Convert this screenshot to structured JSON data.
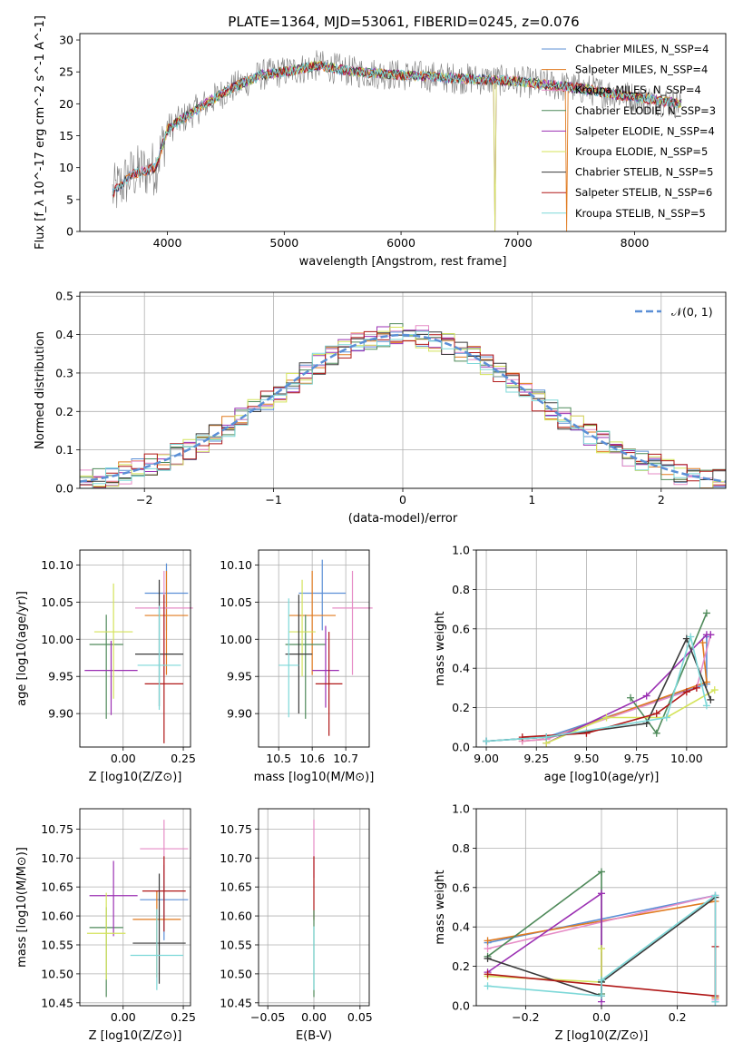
{
  "title": "PLATE=1364, MJD=53061, FIBERID=0245, z=0.076",
  "colors": {
    "chabrier_miles": "#5b8fd6",
    "salpeter_miles": "#e07a1f",
    "kroupa_miles": "#e68bc6",
    "chabrier_elodie": "#4f8a5a",
    "salpeter_elodie": "#9b30b3",
    "kroupa_elodie": "#d4e35a",
    "chabrier_stelib": "#3a3a3a",
    "salpeter_stelib": "#b01818",
    "kroupa_stelib": "#7dd8d8",
    "normal_curve": "#5b8fd6"
  },
  "chart_data": [
    {
      "id": "spectrum",
      "type": "line",
      "title": "PLATE=1364, MJD=53061, FIBERID=0245, z=0.076",
      "xlabel": "wavelength [Angstrom, rest frame]",
      "ylabel": "Flux [f_λ 10^-17 erg cm^-2 s^-1 A^-1]",
      "xlim": [
        3250,
        8780
      ],
      "ylim": [
        0,
        31
      ],
      "xticks": [
        4000,
        5000,
        6000,
        7000,
        8000
      ],
      "yticks": [
        0,
        5,
        10,
        15,
        20,
        25,
        30
      ],
      "legend_position": "top-right",
      "legend": [
        "Chabrier MILES, N_SSP=4",
        "Salpeter MILES, N_SSP=4",
        "Kroupa MILES, N_SSP=4",
        "Chabrier ELODIE, N_SSP=3",
        "Salpeter ELODIE, N_SSP=4",
        "Kroupa ELODIE, N_SSP=5",
        "Chabrier STELIB, N_SSP=5",
        "Salpeter STELIB, N_SSP=6",
        "Kroupa STELIB, N_SSP=5"
      ],
      "continuum": {
        "x": [
          3530,
          3700,
          3900,
          4000,
          4200,
          4500,
          4800,
          5000,
          5300,
          5600,
          6000,
          6500,
          7000,
          7500,
          8000,
          8400
        ],
        "y": [
          6,
          9,
          10,
          16,
          18.5,
          22,
          24.5,
          25,
          26,
          25,
          24.5,
          24,
          23.5,
          22.5,
          21,
          20
        ]
      },
      "dropouts": [
        {
          "x": 6800,
          "to": 0
        },
        {
          "x": 7420,
          "to": 0
        }
      ]
    },
    {
      "id": "residuals",
      "type": "histogram",
      "xlabel": "(data-model)/error",
      "ylabel": "Normed distribution",
      "xlim": [
        -2.5,
        2.5
      ],
      "ylim": [
        0,
        0.51
      ],
      "xticks": [
        -2,
        -1,
        0,
        1,
        2
      ],
      "yticks": [
        0.0,
        0.1,
        0.2,
        0.3,
        0.4,
        0.5
      ],
      "grid": true,
      "legend_position": "top-right",
      "legend": [
        "𝒩(0, 1)"
      ],
      "bin_width": 0.1
    },
    {
      "id": "age_vs_Z",
      "type": "scatter",
      "xlabel": "Z [log10(Z/Z⊙)]",
      "ylabel": "age [log10(age/yr)]",
      "xlim": [
        -0.18,
        0.28
      ],
      "ylim": [
        9.855,
        10.12
      ],
      "xticks": [
        0.0,
        0.25
      ],
      "yticks": [
        9.9,
        9.95,
        10.0,
        10.05,
        10.1
      ],
      "grid": true,
      "points": [
        {
          "s": "chabrier_miles",
          "x": 0.18,
          "y": 10.062,
          "xe": 0.09,
          "yel": 0.05,
          "yeu": 0.04
        },
        {
          "s": "salpeter_miles",
          "x": 0.18,
          "y": 10.032,
          "xe": 0.09,
          "yel": 0.08,
          "yeu": 0.06
        },
        {
          "s": "kroupa_miles",
          "x": 0.17,
          "y": 10.042,
          "xe": 0.12,
          "yel": 0.09,
          "yeu": 0.05
        },
        {
          "s": "chabrier_elodie",
          "x": -0.07,
          "y": 9.993,
          "xe": 0.07,
          "yel": 0.1,
          "yeu": 0.04
        },
        {
          "s": "salpeter_elodie",
          "x": -0.05,
          "y": 9.958,
          "xe": 0.11,
          "yel": 0.06,
          "yeu": 0.04
        },
        {
          "s": "kroupa_elodie",
          "x": -0.04,
          "y": 10.01,
          "xe": 0.08,
          "yel": 0.09,
          "yeu": 0.065
        },
        {
          "s": "chabrier_stelib",
          "x": 0.15,
          "y": 9.98,
          "xe": 0.1,
          "yel": 0.07,
          "yeu": 0.1
        },
        {
          "s": "salpeter_stelib",
          "x": 0.17,
          "y": 9.94,
          "xe": 0.08,
          "yel": 0.08,
          "yeu": 0.12
        },
        {
          "s": "kroupa_stelib",
          "x": 0.15,
          "y": 9.965,
          "xe": 0.09,
          "yel": 0.06,
          "yeu": 0.08
        }
      ]
    },
    {
      "id": "age_vs_mass",
      "type": "scatter",
      "xlabel": "mass [log10(M/M⊙)]",
      "ylabel": "",
      "xlim": [
        10.44,
        10.77
      ],
      "ylim": [
        9.855,
        10.12
      ],
      "xticks": [
        10.5,
        10.6,
        10.7
      ],
      "yticks": [
        9.9,
        9.95,
        10.0,
        10.05,
        10.1
      ],
      "grid": true,
      "points": [
        {
          "s": "chabrier_miles",
          "x": 10.63,
          "y": 10.062,
          "xe": 0.07,
          "yel": 0.05,
          "yeu": 0.045
        },
        {
          "s": "salpeter_miles",
          "x": 10.6,
          "y": 10.032,
          "xe": 0.07,
          "yel": 0.08,
          "yeu": 0.06
        },
        {
          "s": "kroupa_miles",
          "x": 10.72,
          "y": 10.042,
          "xe": 0.06,
          "yel": 0.09,
          "yeu": 0.05
        },
        {
          "s": "chabrier_elodie",
          "x": 10.58,
          "y": 9.993,
          "xe": 0.06,
          "yel": 0.1,
          "yeu": 0.04
        },
        {
          "s": "salpeter_elodie",
          "x": 10.64,
          "y": 9.958,
          "xe": 0.04,
          "yel": 0.05,
          "yeu": 0.06
        },
        {
          "s": "kroupa_elodie",
          "x": 10.57,
          "y": 10.01,
          "xe": 0.04,
          "yel": 0.06,
          "yeu": 0.07
        },
        {
          "s": "chabrier_stelib",
          "x": 10.56,
          "y": 9.98,
          "xe": 0.04,
          "yel": 0.08,
          "yeu": 0.08
        },
        {
          "s": "salpeter_stelib",
          "x": 10.65,
          "y": 9.94,
          "xe": 0.04,
          "yel": 0.07,
          "yeu": 0.07
        },
        {
          "s": "kroupa_stelib",
          "x": 10.53,
          "y": 9.965,
          "xe": 0.03,
          "yel": 0.07,
          "yeu": 0.09
        }
      ]
    },
    {
      "id": "mass_weight_vs_age",
      "type": "line",
      "xlabel": "age [log10(age/yr)]",
      "ylabel": "mass weight",
      "xlim": [
        8.95,
        10.2
      ],
      "ylim": [
        0,
        1.0
      ],
      "xticks": [
        9.0,
        9.25,
        9.5,
        9.75,
        10.0
      ],
      "yticks": [
        0.0,
        0.2,
        0.4,
        0.6,
        0.8,
        1.0
      ],
      "grid": true,
      "series": [
        {
          "s": "chabrier_miles",
          "x": [
            9.0,
            9.3,
            10.1,
            10.1
          ],
          "y": [
            0.03,
            0.05,
            0.32,
            0.56
          ]
        },
        {
          "s": "salpeter_miles",
          "x": [
            9.18,
            9.3,
            10.1,
            10.08
          ],
          "y": [
            0.03,
            0.04,
            0.33,
            0.53
          ]
        },
        {
          "s": "kroupa_miles",
          "x": [
            9.18,
            9.3,
            10.05,
            10.12
          ],
          "y": [
            0.03,
            0.04,
            0.3,
            0.57
          ]
        },
        {
          "s": "chabrier_elodie",
          "x": [
            9.72,
            9.85,
            10.1
          ],
          "y": [
            0.25,
            0.07,
            0.68
          ]
        },
        {
          "s": "salpeter_elodie",
          "x": [
            9.3,
            9.8,
            10.1,
            10.12
          ],
          "y": [
            0.02,
            0.26,
            0.57,
            0.57
          ]
        },
        {
          "s": "kroupa_elodie",
          "x": [
            9.3,
            9.6,
            9.9,
            10.14
          ],
          "y": [
            0.02,
            0.15,
            0.15,
            0.29
          ]
        },
        {
          "s": "chabrier_stelib",
          "x": [
            9.0,
            9.3,
            9.8,
            10.0,
            10.12
          ],
          "y": [
            0.03,
            0.05,
            0.12,
            0.55,
            0.24
          ]
        },
        {
          "s": "salpeter_stelib",
          "x": [
            9.18,
            9.5,
            9.85,
            10.0,
            10.05
          ],
          "y": [
            0.05,
            0.07,
            0.17,
            0.28,
            0.3
          ]
        },
        {
          "s": "kroupa_stelib",
          "x": [
            9.0,
            9.3,
            9.9,
            10.02,
            10.1
          ],
          "y": [
            0.03,
            0.05,
            0.15,
            0.56,
            0.21
          ]
        }
      ]
    },
    {
      "id": "mass_vs_Z",
      "type": "scatter",
      "xlabel": "Z [log10(Z/Z⊙)]",
      "ylabel": "mass [log10(M/M⊙)]",
      "xlim": [
        -0.18,
        0.28
      ],
      "ylim": [
        10.445,
        10.785
      ],
      "xticks": [
        0.0,
        0.25
      ],
      "yticks": [
        10.45,
        10.5,
        10.55,
        10.6,
        10.65,
        10.7,
        10.75
      ],
      "grid": true,
      "points": [
        {
          "s": "chabrier_miles",
          "x": 0.17,
          "y": 10.628,
          "xe": 0.1,
          "yel": 0.07,
          "yeu": 0.06
        },
        {
          "s": "salpeter_miles",
          "x": 0.14,
          "y": 10.594,
          "xe": 0.1,
          "yel": 0.1,
          "yeu": 0.05
        },
        {
          "s": "kroupa_miles",
          "x": 0.17,
          "y": 10.716,
          "xe": 0.1,
          "yel": 0.05,
          "yeu": 0.05
        },
        {
          "s": "chabrier_elodie",
          "x": -0.07,
          "y": 10.58,
          "xe": 0.07,
          "yel": 0.12,
          "yeu": 0.035
        },
        {
          "s": "salpeter_elodie",
          "x": -0.04,
          "y": 10.635,
          "xe": 0.1,
          "yel": 0.07,
          "yeu": 0.06
        },
        {
          "s": "kroupa_elodie",
          "x": -0.07,
          "y": 10.57,
          "xe": 0.08,
          "yel": 0.08,
          "yeu": 0.07
        },
        {
          "s": "chabrier_stelib",
          "x": 0.15,
          "y": 10.553,
          "xe": 0.11,
          "yel": 0.07,
          "yeu": 0.12
        },
        {
          "s": "salpeter_stelib",
          "x": 0.17,
          "y": 10.643,
          "xe": 0.09,
          "yel": 0.07,
          "yeu": 0.06
        },
        {
          "s": "kroupa_stelib",
          "x": 0.14,
          "y": 10.532,
          "xe": 0.11,
          "yel": 0.06,
          "yeu": 0.08
        }
      ]
    },
    {
      "id": "mass_vs_ebv",
      "type": "scatter",
      "xlabel": "E(B-V)",
      "ylabel": "",
      "xlim": [
        -0.06,
        0.06
      ],
      "ylim": [
        10.445,
        10.785
      ],
      "xticks": [
        -0.05,
        0.0,
        0.05
      ],
      "yticks": [
        10.45,
        10.5,
        10.55,
        10.6,
        10.65,
        10.7,
        10.75
      ],
      "grid": true,
      "points": [
        {
          "s": "kroupa_miles",
          "x": 0.0,
          "y": 10.716,
          "xe": 0.0,
          "yel": 0.05,
          "yeu": 0.05
        },
        {
          "s": "salpeter_stelib",
          "x": 0.0,
          "y": 10.643,
          "xe": 0.0,
          "yel": 0.05,
          "yeu": 0.06
        },
        {
          "s": "chabrier_elodie",
          "x": 0.0,
          "y": 10.58,
          "xe": 0.0,
          "yel": 0.12,
          "yeu": 0.03
        },
        {
          "s": "kroupa_stelib",
          "x": 0.0,
          "y": 10.532,
          "xe": 0.0,
          "yel": 0.06,
          "yeu": 0.05
        }
      ]
    },
    {
      "id": "mass_weight_vs_Z",
      "type": "line",
      "xlabel": "Z [log10(Z/Z⊙)]",
      "ylabel": "mass weight",
      "xlim": [
        -0.33,
        0.33
      ],
      "ylim": [
        0,
        1.0
      ],
      "xticks": [
        -0.2,
        0.0,
        0.2
      ],
      "yticks": [
        0.0,
        0.2,
        0.4,
        0.6,
        0.8,
        1.0
      ],
      "grid": true,
      "series": [
        {
          "s": "chabrier_miles",
          "x": [
            -0.3,
            0.3,
            0.3
          ],
          "y": [
            0.32,
            0.56,
            0.02
          ]
        },
        {
          "s": "salpeter_miles",
          "x": [
            -0.3,
            0.3,
            0.3
          ],
          "y": [
            0.33,
            0.53,
            0.04
          ]
        },
        {
          "s": "kroupa_miles",
          "x": [
            -0.3,
            0.3,
            0.3
          ],
          "y": [
            0.29,
            0.56,
            0.03
          ]
        },
        {
          "s": "chabrier_elodie",
          "x": [
            -0.3,
            0.0,
            0.0
          ],
          "y": [
            0.25,
            0.68,
            0.06
          ]
        },
        {
          "s": "salpeter_elodie",
          "x": [
            -0.3,
            0.0,
            0.0
          ],
          "y": [
            0.17,
            0.57,
            0.02
          ]
        },
        {
          "s": "kroupa_elodie",
          "x": [
            -0.3,
            0.0,
            0.0
          ],
          "y": [
            0.15,
            0.12,
            0.29
          ]
        },
        {
          "s": "chabrier_stelib",
          "x": [
            -0.3,
            0.0,
            0.0,
            0.3
          ],
          "y": [
            0.24,
            0.05,
            0.12,
            0.55
          ]
        },
        {
          "s": "salpeter_stelib",
          "x": [
            -0.3,
            0.3,
            0.3
          ],
          "y": [
            0.16,
            0.05,
            0.3
          ]
        },
        {
          "s": "kroupa_stelib",
          "x": [
            -0.3,
            0.0,
            0.0,
            0.3,
            0.3
          ],
          "y": [
            0.1,
            0.05,
            0.13,
            0.56,
            0.02
          ]
        }
      ]
    }
  ]
}
